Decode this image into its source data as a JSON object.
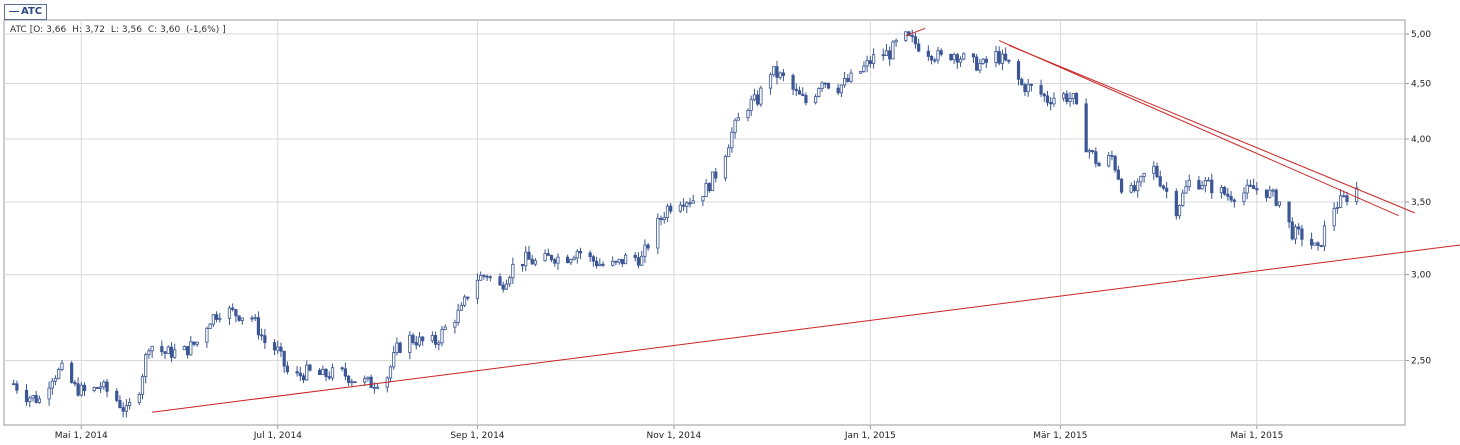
{
  "legend": {
    "symbol": "ATC"
  },
  "ohlc": {
    "symbol": "ATC",
    "open_label": "O:",
    "open": "3,66",
    "high_label": "H:",
    "high": "3,72",
    "low_label": "L:",
    "low": "3,56",
    "close_label": "C:",
    "close": "3,60",
    "change": "(-1,6%)"
  },
  "colors": {
    "candle": "#3b5694",
    "trend": "#cc2222",
    "grid": "#d8d8d8",
    "frame": "#9a9a9a"
  },
  "chart_data": {
    "type": "candlestick",
    "title": "",
    "xlabel": "",
    "ylabel": "",
    "y_scale": "log",
    "ylim": [
      2.18,
      5.15
    ],
    "xlim": [
      "2014-04-07",
      "2015-06-16"
    ],
    "grid": true,
    "y_ticks": [
      {
        "value": 2.5,
        "label": "2,50"
      },
      {
        "value": 3.0,
        "label": "3,00"
      },
      {
        "value": 3.5,
        "label": "3,50"
      },
      {
        "value": 4.0,
        "label": "4,00"
      },
      {
        "value": 4.5,
        "label": "4,50"
      },
      {
        "value": 5.0,
        "label": "5,00"
      }
    ],
    "x_ticks": [
      {
        "date": "2014-05-01",
        "label": "Mai 1, 2014"
      },
      {
        "date": "2014-07-01",
        "label": "Jul 1, 2014"
      },
      {
        "date": "2014-09-01",
        "label": "Sep 1, 2014"
      },
      {
        "date": "2014-11-01",
        "label": "Nov 1, 2014"
      },
      {
        "date": "2015-01-01",
        "label": "Jan 1, 2015"
      },
      {
        "date": "2015-03-01",
        "label": "Mär 1, 2015"
      },
      {
        "date": "2015-05-01",
        "label": "Mai 1, 2015"
      }
    ],
    "price_path": [
      [
        "2014-04-10",
        2.38
      ],
      [
        "2014-04-14",
        2.32
      ],
      [
        "2014-04-18",
        2.3
      ],
      [
        "2014-04-22",
        2.42
      ],
      [
        "2014-04-25",
        2.45
      ],
      [
        "2014-04-29",
        2.36
      ],
      [
        "2014-05-03",
        2.33
      ],
      [
        "2014-05-07",
        2.37
      ],
      [
        "2014-05-12",
        2.3
      ],
      [
        "2014-05-15",
        2.24
      ],
      [
        "2014-05-19",
        2.36
      ],
      [
        "2014-05-22",
        2.59
      ],
      [
        "2014-05-27",
        2.54
      ],
      [
        "2014-06-02",
        2.55
      ],
      [
        "2014-06-06",
        2.6
      ],
      [
        "2014-06-10",
        2.73
      ],
      [
        "2014-06-14",
        2.79
      ],
      [
        "2014-06-18",
        2.76
      ],
      [
        "2014-06-23",
        2.74
      ],
      [
        "2014-06-27",
        2.6
      ],
      [
        "2014-07-01",
        2.55
      ],
      [
        "2014-07-05",
        2.4
      ],
      [
        "2014-07-10",
        2.44
      ],
      [
        "2014-07-15",
        2.42
      ],
      [
        "2014-07-20",
        2.44
      ],
      [
        "2014-07-25",
        2.4
      ],
      [
        "2014-07-30",
        2.38
      ],
      [
        "2014-08-04",
        2.42
      ],
      [
        "2014-08-07",
        2.56
      ],
      [
        "2014-08-11",
        2.62
      ],
      [
        "2014-08-15",
        2.6
      ],
      [
        "2014-08-19",
        2.6
      ],
      [
        "2014-08-23",
        2.7
      ],
      [
        "2014-08-27",
        2.78
      ],
      [
        "2014-08-31",
        2.97
      ],
      [
        "2014-09-04",
        3.0
      ],
      [
        "2014-09-08",
        2.92
      ],
      [
        "2014-09-12",
        3.05
      ],
      [
        "2014-09-16",
        3.1
      ],
      [
        "2014-09-20",
        3.07
      ],
      [
        "2014-09-24",
        3.12
      ],
      [
        "2014-09-28",
        3.1
      ],
      [
        "2014-10-02",
        3.16
      ],
      [
        "2014-10-06",
        3.1
      ],
      [
        "2014-10-10",
        3.06
      ],
      [
        "2014-10-14",
        3.06
      ],
      [
        "2014-10-18",
        3.12
      ],
      [
        "2014-10-22",
        3.1
      ],
      [
        "2014-10-26",
        3.3
      ],
      [
        "2014-10-30",
        3.46
      ],
      [
        "2014-11-03",
        3.52
      ],
      [
        "2014-11-07",
        3.52
      ],
      [
        "2014-11-11",
        3.6
      ],
      [
        "2014-11-15",
        3.75
      ],
      [
        "2014-11-19",
        4.05
      ],
      [
        "2014-11-23",
        4.28
      ],
      [
        "2014-11-27",
        4.35
      ],
      [
        "2014-12-01",
        4.62
      ],
      [
        "2014-12-05",
        4.55
      ],
      [
        "2014-12-09",
        4.4
      ],
      [
        "2014-12-13",
        4.3
      ],
      [
        "2014-12-17",
        4.55
      ],
      [
        "2014-12-21",
        4.45
      ],
      [
        "2014-12-25",
        4.52
      ],
      [
        "2014-12-29",
        4.62
      ],
      [
        "2015-01-03",
        4.78
      ],
      [
        "2015-01-07",
        4.8
      ],
      [
        "2015-01-11",
        4.98
      ],
      [
        "2015-01-15",
        4.9
      ],
      [
        "2015-01-19",
        4.82
      ],
      [
        "2015-01-23",
        4.75
      ],
      [
        "2015-01-27",
        4.8
      ],
      [
        "2015-02-01",
        4.7
      ],
      [
        "2015-02-05",
        4.68
      ],
      [
        "2015-02-09",
        4.78
      ],
      [
        "2015-02-13",
        4.68
      ],
      [
        "2015-02-17",
        4.48
      ],
      [
        "2015-02-21",
        4.45
      ],
      [
        "2015-02-25",
        4.35
      ],
      [
        "2015-03-01",
        4.4
      ],
      [
        "2015-03-05",
        4.35
      ],
      [
        "2015-03-09",
        3.95
      ],
      [
        "2015-03-13",
        3.78
      ],
      [
        "2015-03-17",
        3.85
      ],
      [
        "2015-03-21",
        3.55
      ],
      [
        "2015-03-25",
        3.6
      ],
      [
        "2015-03-29",
        3.8
      ],
      [
        "2015-04-02",
        3.62
      ],
      [
        "2015-04-06",
        3.45
      ],
      [
        "2015-04-10",
        3.65
      ],
      [
        "2015-04-14",
        3.65
      ],
      [
        "2015-04-18",
        3.6
      ],
      [
        "2015-04-22",
        3.55
      ],
      [
        "2015-04-26",
        3.56
      ],
      [
        "2015-04-30",
        3.6
      ],
      [
        "2015-05-04",
        3.58
      ],
      [
        "2015-05-08",
        3.5
      ],
      [
        "2015-05-12",
        3.28
      ],
      [
        "2015-05-16",
        3.25
      ],
      [
        "2015-05-20",
        3.15
      ],
      [
        "2015-05-24",
        3.45
      ],
      [
        "2015-05-28",
        3.52
      ],
      [
        "2015-06-01",
        3.6
      ]
    ],
    "annotations": [
      {
        "name": "support-trendline",
        "from": [
          "2014-05-23",
          2.24
        ],
        "to": [
          "2015-07-05",
          3.2
        ]
      },
      {
        "name": "resistance-trendline-upper",
        "from": [
          "2015-02-13",
          4.88
        ],
        "to": [
          "2015-06-19",
          3.42
        ]
      },
      {
        "name": "resistance-trendline-lower",
        "from": [
          "2015-02-10",
          4.93
        ],
        "to": [
          "2015-06-14",
          3.4
        ]
      },
      {
        "name": "top-trendline-stub",
        "from": [
          "2015-01-12",
          4.98
        ],
        "to": [
          "2015-01-18",
          5.06
        ]
      }
    ]
  }
}
